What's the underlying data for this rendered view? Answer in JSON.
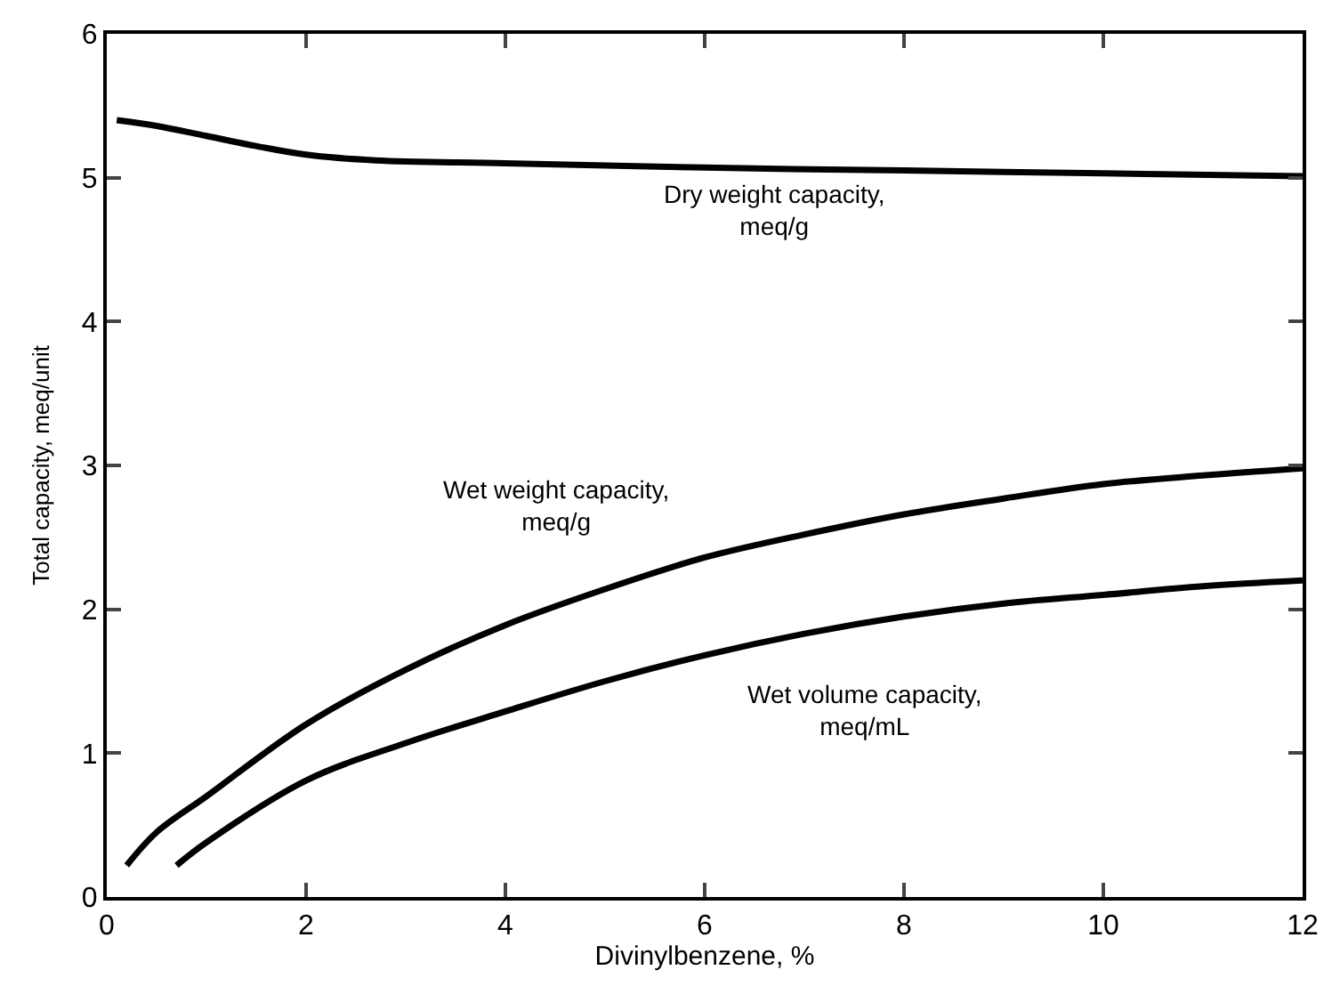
{
  "chart_data": {
    "type": "line",
    "xlabel": "Divinylbenzene, %",
    "ylabel": "Total capacity, meq/unit",
    "xlim": [
      0,
      12
    ],
    "ylim": [
      0,
      6
    ],
    "xticks": [
      0,
      2,
      4,
      6,
      8,
      10,
      12
    ],
    "yticks": [
      0,
      1,
      2,
      3,
      4,
      5,
      6
    ],
    "legend": false,
    "marker": "none",
    "line_style": "solid",
    "series": [
      {
        "name": "Dry weight capacity, meq/g",
        "color": "#000000",
        "x": [
          0.1,
          0.5,
          1,
          1.5,
          2,
          2.7,
          4,
          6,
          8,
          10,
          12
        ],
        "values": [
          5.4,
          5.36,
          5.29,
          5.22,
          5.16,
          5.12,
          5.1,
          5.07,
          5.05,
          5.03,
          5.01
        ]
      },
      {
        "name": "Wet weight capacity, meq/g",
        "color": "#000000",
        "x": [
          0.2,
          0.5,
          1,
          2,
          3,
          4,
          5,
          6,
          7,
          8,
          9,
          10,
          11,
          12
        ],
        "values": [
          0.22,
          0.45,
          0.7,
          1.2,
          1.58,
          1.89,
          2.14,
          2.36,
          2.52,
          2.66,
          2.77,
          2.87,
          2.93,
          2.98
        ]
      },
      {
        "name": "Wet volume capacity, meq/mL",
        "color": "#000000",
        "x": [
          0.7,
          1,
          2,
          3,
          4,
          5,
          6,
          7,
          8,
          9,
          10,
          11,
          12
        ],
        "values": [
          0.22,
          0.38,
          0.81,
          1.07,
          1.29,
          1.5,
          1.68,
          1.83,
          1.95,
          2.04,
          2.1,
          2.16,
          2.2
        ]
      }
    ]
  }
}
